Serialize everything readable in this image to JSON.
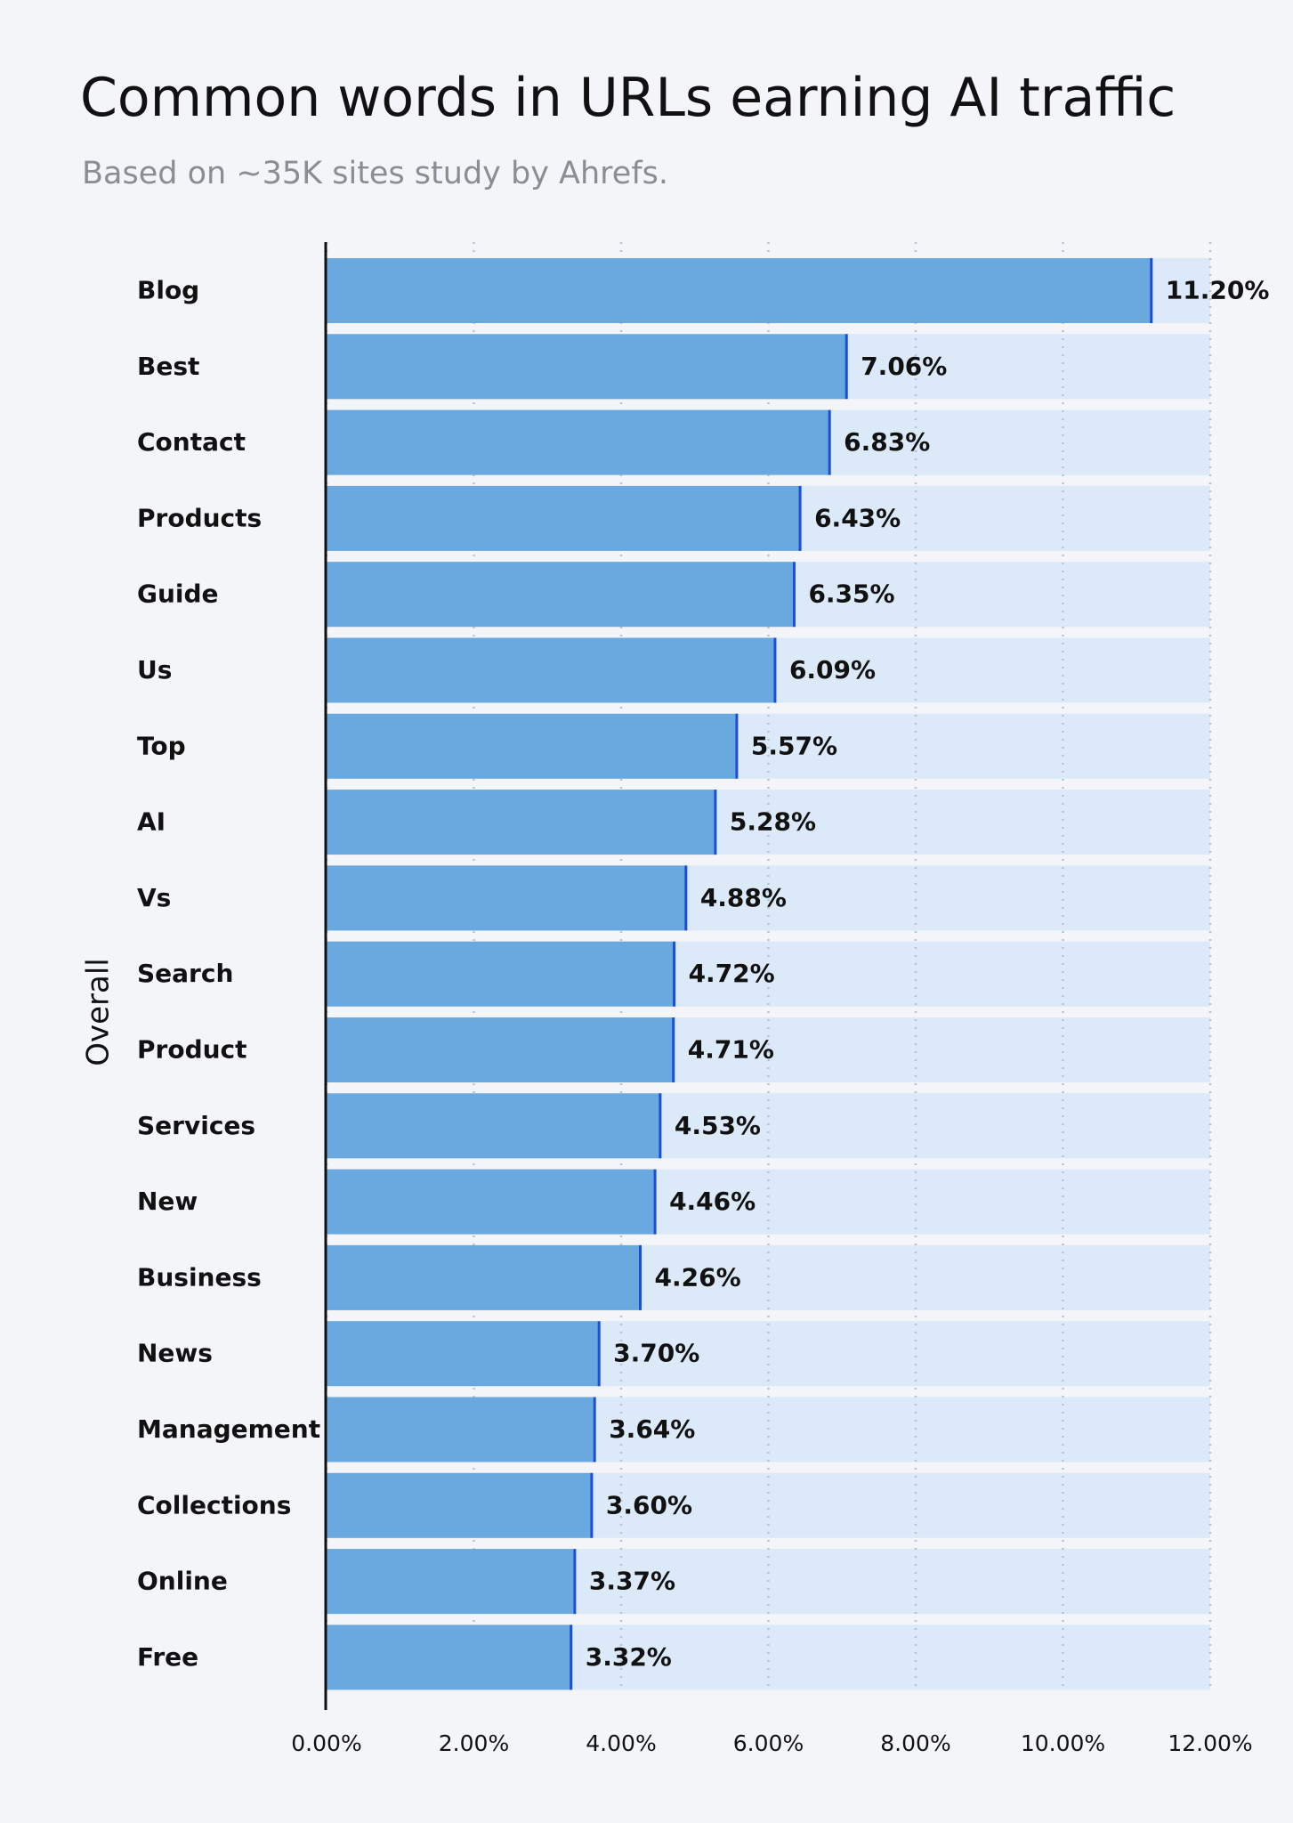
{
  "chart_data": {
    "type": "hbar",
    "title": "Common words in URLs earning AI traffic",
    "subtitle": "Based on ~35K sites study by Ahrefs.",
    "y_label": "Overall",
    "categories": [
      "Blog",
      "Best",
      "Contact",
      "Products",
      "Guide",
      "Us",
      "Top",
      "AI",
      "Vs",
      "Search",
      "Product",
      "Services",
      "New",
      "Business",
      "News",
      "Management",
      "Collections",
      "Online",
      "Free"
    ],
    "values": [
      11.2,
      7.06,
      6.83,
      6.43,
      6.35,
      6.09,
      5.57,
      5.28,
      4.88,
      4.72,
      4.71,
      4.53,
      4.46,
      4.26,
      3.7,
      3.64,
      3.6,
      3.37,
      3.32
    ],
    "value_labels": [
      "11.20%",
      "7.06%",
      "6.83%",
      "6.43%",
      "6.35%",
      "6.09%",
      "5.57%",
      "5.28%",
      "4.88%",
      "4.72%",
      "4.71%",
      "4.53%",
      "4.46%",
      "4.26%",
      "3.70%",
      "3.64%",
      "3.60%",
      "3.37%",
      "3.32%"
    ],
    "color": "#6aa9e0",
    "track_color": "#dbe9f8",
    "edge_color": "#1a4fd6",
    "xlim": [
      0,
      12
    ],
    "xticks": [
      {
        "value": 0,
        "label": "0.00%"
      },
      {
        "value": 2,
        "label": "2.00%"
      },
      {
        "value": 4,
        "label": "4.00%"
      },
      {
        "value": 6,
        "label": "6.00%"
      },
      {
        "value": 8,
        "label": "8.00%"
      },
      {
        "value": 10,
        "label": "10.00%"
      },
      {
        "value": 12,
        "label": "12.00%"
      }
    ],
    "grid": true
  }
}
